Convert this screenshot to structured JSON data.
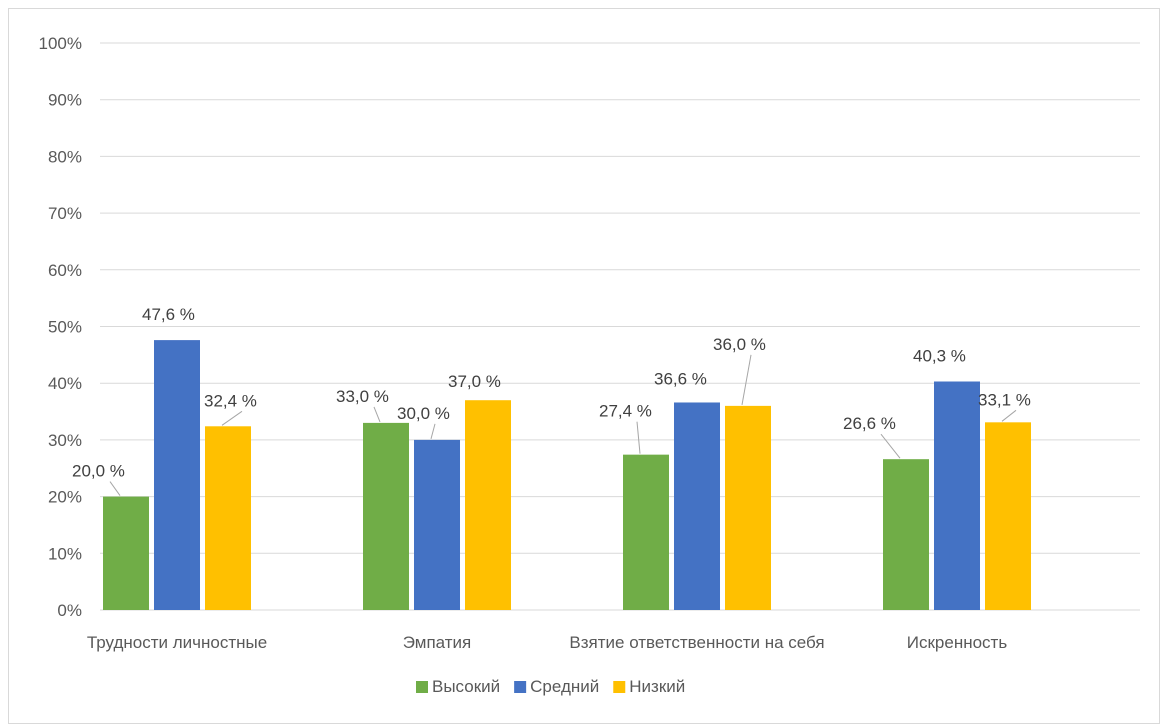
{
  "chart_data": {
    "type": "bar",
    "categories": [
      "Трудности личностные",
      "Эмпатия",
      "Взятие ответственности на себя",
      "Искренность"
    ],
    "series": [
      {
        "name": "Высокий",
        "values": [
          20.0,
          33.0,
          27.4,
          26.6
        ],
        "labels": [
          "20,0 %",
          "33,0 %",
          "27,4 %",
          "26,6 %"
        ],
        "color": "#70ad47"
      },
      {
        "name": "Средний",
        "values": [
          47.6,
          30.0,
          36.6,
          40.3
        ],
        "labels": [
          "47,6 %",
          "30,0 %",
          "36,6 %",
          "40,3 %"
        ],
        "color": "#4472c4"
      },
      {
        "name": "Низкий",
        "values": [
          32.4,
          37.0,
          36.0,
          33.1
        ],
        "labels": [
          "32,4 %",
          "37,0 %",
          "36,0 %",
          "33,1 %"
        ],
        "color": "#ffc000"
      }
    ],
    "y_ticks": [
      "0%",
      "10%",
      "20%",
      "30%",
      "40%",
      "50%",
      "60%",
      "70%",
      "80%",
      "90%",
      "100%"
    ],
    "ylim": [
      0,
      100
    ],
    "grid": true,
    "legend": "bottom",
    "title": "",
    "xlabel": "",
    "ylabel": ""
  }
}
